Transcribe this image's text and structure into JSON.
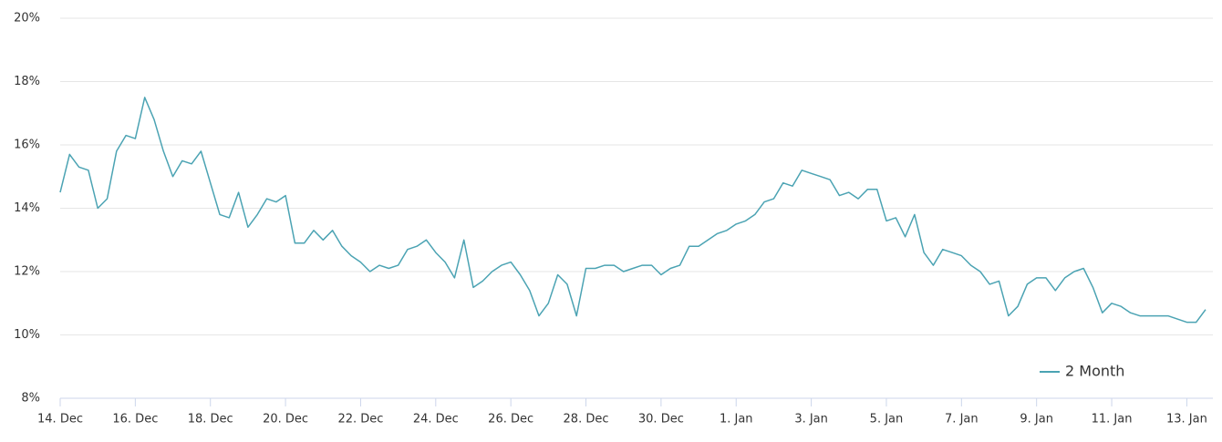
{
  "chart_data": {
    "type": "line",
    "categories": [
      "14. Dec",
      null,
      null,
      null,
      null,
      null,
      null,
      null,
      "16. Dec",
      null,
      null,
      null,
      null,
      null,
      null,
      null,
      "18. Dec",
      null,
      null,
      null,
      null,
      null,
      null,
      null,
      "20. Dec",
      null,
      null,
      null,
      null,
      null,
      null,
      null,
      "22. Dec",
      null,
      null,
      null,
      null,
      null,
      null,
      null,
      "24. Dec",
      null,
      null,
      null,
      null,
      null,
      null,
      null,
      "26. Dec",
      null,
      null,
      null,
      null,
      null,
      null,
      null,
      "28. Dec",
      null,
      null,
      null,
      null,
      null,
      null,
      null,
      "30. Dec",
      null,
      null,
      null,
      null,
      null,
      null,
      null,
      "1. Jan",
      null,
      null,
      null,
      null,
      null,
      null,
      null,
      "3. Jan",
      null,
      null,
      null,
      null,
      null,
      null,
      null,
      "5. Jan",
      null,
      null,
      null,
      null,
      null,
      null,
      null,
      "7. Jan",
      null,
      null,
      null,
      null,
      null,
      null,
      null,
      "9. Jan",
      null,
      null,
      null,
      null,
      null,
      null,
      null,
      "11. Jan",
      null,
      null,
      null,
      null,
      null,
      null,
      null,
      "13. Jan",
      null,
      null
    ],
    "series": [
      {
        "name": "2 Month",
        "color": "#4ba3b3",
        "values": [
          14.5,
          15.7,
          15.3,
          15.2,
          14.0,
          14.3,
          15.8,
          16.3,
          16.2,
          17.5,
          16.8,
          15.8,
          15.0,
          15.5,
          15.4,
          15.8,
          14.8,
          13.8,
          13.7,
          14.5,
          13.4,
          13.8,
          14.3,
          14.2,
          14.4,
          12.9,
          12.9,
          13.3,
          13.0,
          13.3,
          12.8,
          12.5,
          12.3,
          12.0,
          12.2,
          12.1,
          12.2,
          12.7,
          12.8,
          13.0,
          12.6,
          12.3,
          11.8,
          13.0,
          11.5,
          11.7,
          12.0,
          12.2,
          12.3,
          11.9,
          11.4,
          10.6,
          11.0,
          11.9,
          11.6,
          10.6,
          12.1,
          12.1,
          12.2,
          12.2,
          12.0,
          12.1,
          12.2,
          12.2,
          11.9,
          12.1,
          12.2,
          12.8,
          12.8,
          13.0,
          13.2,
          13.3,
          13.5,
          13.6,
          13.8,
          14.2,
          14.3,
          14.8,
          14.7,
          15.2,
          15.1,
          15.0,
          14.9,
          14.4,
          14.5,
          14.3,
          14.6,
          14.6,
          13.6,
          13.7,
          13.1,
          13.8,
          12.6,
          12.2,
          12.7,
          12.6,
          12.5,
          12.2,
          12.0,
          11.6,
          11.7,
          10.6,
          10.9,
          11.6,
          11.8,
          11.8,
          11.4,
          11.8,
          12.0,
          12.1,
          11.5,
          10.7,
          11.0,
          10.9,
          10.7,
          10.6,
          10.6,
          10.6,
          10.6,
          10.5,
          10.4,
          10.4,
          10.8
        ]
      }
    ],
    "ylim": [
      8,
      20
    ],
    "yticks": [
      {
        "value": 8,
        "label": "8%"
      },
      {
        "value": 10,
        "label": "10%"
      },
      {
        "value": 12,
        "label": "12%"
      },
      {
        "value": 14,
        "label": "14%"
      },
      {
        "value": 16,
        "label": "16%"
      },
      {
        "value": 18,
        "label": "18%"
      },
      {
        "value": 20,
        "label": "20%"
      }
    ],
    "grid": true,
    "legend": "lower right"
  }
}
